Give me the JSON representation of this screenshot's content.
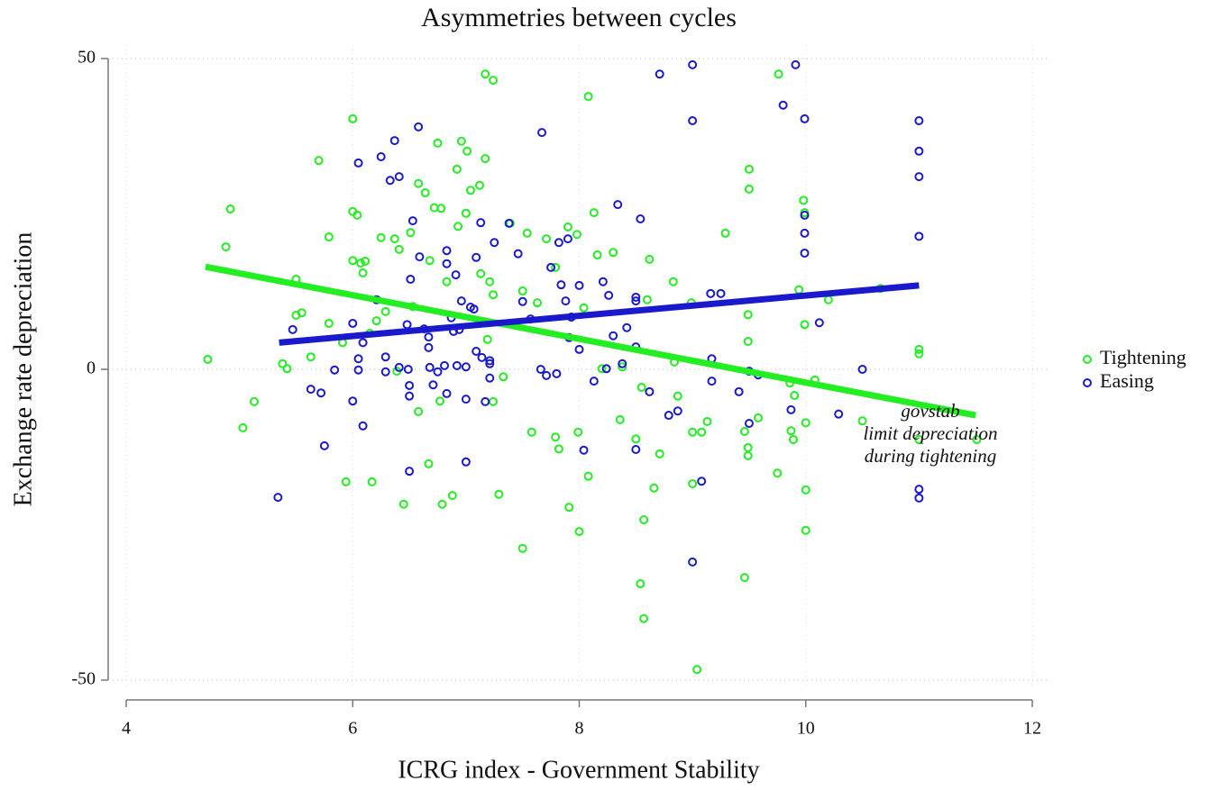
{
  "chart_data": {
    "type": "scatter",
    "title": "Asymmetries between cycles",
    "x_label": "ICRG index - Government Stability",
    "y_label": "Exchange rate depreciation",
    "xlim": [
      4,
      12
    ],
    "ylim": [
      -50,
      50
    ],
    "xticks": [
      4,
      6,
      8,
      10,
      12
    ],
    "yticks": [
      -50,
      0,
      50
    ],
    "grid": true,
    "legend": "right",
    "annotation": [
      "govstab",
      "limit depreciation",
      "during tightening"
    ],
    "series": [
      {
        "name": "Tightening",
        "color": "#22ee22",
        "x": [
          4.72,
          4.88,
          4.92,
          5.03,
          5.13,
          5.38,
          5.42,
          5.5,
          5.5,
          5.55,
          5.63,
          5.7,
          5.79,
          5.79,
          5.91,
          5.94,
          6.0,
          6.0,
          6.0,
          6.04,
          6.07,
          6.11,
          6.09,
          6.15,
          6.17,
          6.21,
          6.25,
          6.29,
          6.37,
          6.41,
          6.39,
          6.45,
          6.51,
          6.53,
          6.58,
          6.58,
          6.64,
          6.68,
          6.67,
          6.72,
          6.75,
          6.77,
          6.78,
          6.79,
          6.83,
          6.88,
          6.92,
          6.93,
          6.96,
          7.01,
          7.0,
          7.04,
          7.12,
          7.13,
          7.17,
          7.17,
          7.19,
          7.21,
          7.24,
          7.24,
          7.24,
          7.29,
          7.33,
          7.39,
          7.5,
          7.5,
          7.54,
          7.58,
          7.63,
          7.71,
          7.79,
          7.79,
          7.82,
          7.9,
          7.91,
          7.98,
          7.99,
          8.0,
          8.04,
          8.08,
          8.08,
          8.13,
          8.16,
          8.2,
          8.3,
          8.36,
          8.38,
          8.5,
          8.54,
          8.55,
          8.57,
          8.57,
          8.6,
          8.62,
          8.66,
          8.71,
          8.83,
          8.84,
          8.87,
          8.99,
          9.0,
          9.0,
          9.04,
          9.08,
          9.13,
          9.29,
          9.46,
          9.46,
          9.49,
          9.49,
          9.5,
          9.5,
          9.49,
          9.49,
          9.58,
          9.75,
          9.76,
          9.86,
          9.87,
          9.89,
          9.9,
          9.94,
          9.98,
          9.99,
          9.99,
          10.0,
          10.0,
          10.0,
          10.08,
          10.2,
          10.5,
          10.66,
          11.0,
          11.0,
          11.0,
          11.51
        ],
        "values": [
          1.6,
          19.7,
          25.8,
          -9.4,
          -5.2,
          0.9,
          0.1,
          14.5,
          8.7,
          9.1,
          2,
          33.6,
          21.3,
          7.4,
          4.3,
          -18.1,
          40.3,
          25.4,
          17.5,
          24.8,
          17.1,
          17.4,
          15.5,
          5.8,
          -18.1,
          7.8,
          21.2,
          9.3,
          21,
          19.3,
          -0.3,
          -21.7,
          22,
          10.1,
          -6.8,
          29.9,
          28.4,
          17.5,
          -15.2,
          26,
          36.4,
          -5.1,
          25.9,
          -21.7,
          14.1,
          -20.3,
          32.2,
          23,
          36.7,
          35.1,
          25.1,
          28.8,
          29.6,
          15.4,
          47.5,
          33.9,
          4.8,
          14.1,
          -5.2,
          46.5,
          12,
          -20.1,
          -1.2,
          23.5,
          12.6,
          -28.8,
          21.9,
          -10.1,
          10.7,
          21,
          16.4,
          -10.9,
          -12.8,
          22.9,
          -22.2,
          21.7,
          -10.1,
          -26.1,
          9.9,
          43.9,
          -17.2,
          25.2,
          18.4,
          0.1,
          18.8,
          -8.1,
          0.4,
          -11.2,
          -34.5,
          -2.9,
          -40.1,
          -24.2,
          11.2,
          17.7,
          -19.1,
          -13.6,
          14.1,
          1.2,
          -4.3,
          10.7,
          -10.1,
          -18.4,
          -48.3,
          -10.1,
          -8.4,
          21.9,
          -33.5,
          -10,
          4.5,
          8.8,
          32.2,
          29,
          -12.6,
          -13.9,
          -7.8,
          -16.7,
          47.5,
          -2.2,
          -9.9,
          -11.3,
          -4.2,
          12.8,
          27.2,
          25.2,
          7.2,
          -19.4,
          -25.9,
          -8.6,
          -1.7,
          11.2,
          -8.3,
          13,
          3.2,
          2.5,
          -11.3,
          -11.3
        ]
      },
      {
        "name": "Easing",
        "color": "#1a1acc",
        "x": [
          5.34,
          5.47,
          5.63,
          5.72,
          5.75,
          5.84,
          6.0,
          6.0,
          6.05,
          6.05,
          6.05,
          6.09,
          6.09,
          6.21,
          6.25,
          6.29,
          6.29,
          6.33,
          6.37,
          6.41,
          6.41,
          6.48,
          6.49,
          6.5,
          6.5,
          6.5,
          6.51,
          6.53,
          6.58,
          6.59,
          6.63,
          6.67,
          6.67,
          6.68,
          6.71,
          6.75,
          6.81,
          6.83,
          6.83,
          6.83,
          6.87,
          6.89,
          6.91,
          6.92,
          6.94,
          6.96,
          7.0,
          7.0,
          7.0,
          7.04,
          7.07,
          7.09,
          7.09,
          7.13,
          7.14,
          7.17,
          7.21,
          7.21,
          7.21,
          7.25,
          7.38,
          7.46,
          7.5,
          7.57,
          7.66,
          7.67,
          7.71,
          7.75,
          7.8,
          7.82,
          7.84,
          7.88,
          7.9,
          7.91,
          7.93,
          8.0,
          8.0,
          8.04,
          8.13,
          8.21,
          8.24,
          8.26,
          8.3,
          8.34,
          8.38,
          8.42,
          8.5,
          8.5,
          8.5,
          8.5,
          8.54,
          8.62,
          8.71,
          8.79,
          8.87,
          9.0,
          9.0,
          9.0,
          9.08,
          9.16,
          9.17,
          9.17,
          9.25,
          9.41,
          9.5,
          9.5,
          9.58,
          9.8,
          9.87,
          9.91,
          9.99,
          9.99,
          9.99,
          9.99,
          10.12,
          10.29,
          10.5,
          11.0,
          11.0,
          11.0,
          11.0,
          11.0,
          11.0
        ],
        "values": [
          -20.6,
          6.4,
          -3.2,
          -3.8,
          -12.3,
          -0.1,
          7.4,
          -5.1,
          33.2,
          1.7,
          -0.1,
          4.3,
          -9.1,
          11.2,
          34.2,
          2,
          -0.4,
          30.4,
          36.8,
          31,
          0.3,
          7.2,
          0,
          -2.6,
          -4.3,
          -16.4,
          14.5,
          23.9,
          39,
          18.1,
          6.5,
          3.5,
          5.2,
          0.3,
          -2.5,
          -0.4,
          0.6,
          19.1,
          17,
          -3.9,
          8.3,
          6.1,
          15.2,
          0.6,
          6.4,
          11,
          0.4,
          -4.8,
          -14.9,
          10,
          9.7,
          18,
          2.9,
          23.6,
          1.9,
          -5.2,
          1.4,
          0.9,
          -1.4,
          20.4,
          23.5,
          18.6,
          10.9,
          8.1,
          0,
          38.1,
          -1,
          16.4,
          -0.7,
          20.4,
          13.6,
          11,
          21,
          5.1,
          8.4,
          13.5,
          3.2,
          -13,
          -1.9,
          14.1,
          0.1,
          11.9,
          5.4,
          26.5,
          0.9,
          6.7,
          3.6,
          -12.9,
          11.6,
          11,
          24.2,
          -3.6,
          47.5,
          -7.4,
          -6.7,
          49,
          40,
          -31,
          -18,
          12.2,
          1.7,
          -1.9,
          12.2,
          -3.6,
          -0.3,
          -8.7,
          -0.9,
          42.5,
          -6.5,
          49,
          40.3,
          24.8,
          21.9,
          18.7,
          7.5,
          -7.2,
          0,
          40,
          35.1,
          31,
          21.4,
          -19.3,
          -20.7
        ]
      }
    ],
    "fit_lines": [
      {
        "color": "#22ee22",
        "x": [
          4.7,
          11.5
        ],
        "values": [
          16.5,
          -7.4
        ]
      },
      {
        "color": "#1a1acc",
        "x": [
          5.35,
          11
        ],
        "values": [
          4.3,
          13.5
        ]
      }
    ]
  }
}
